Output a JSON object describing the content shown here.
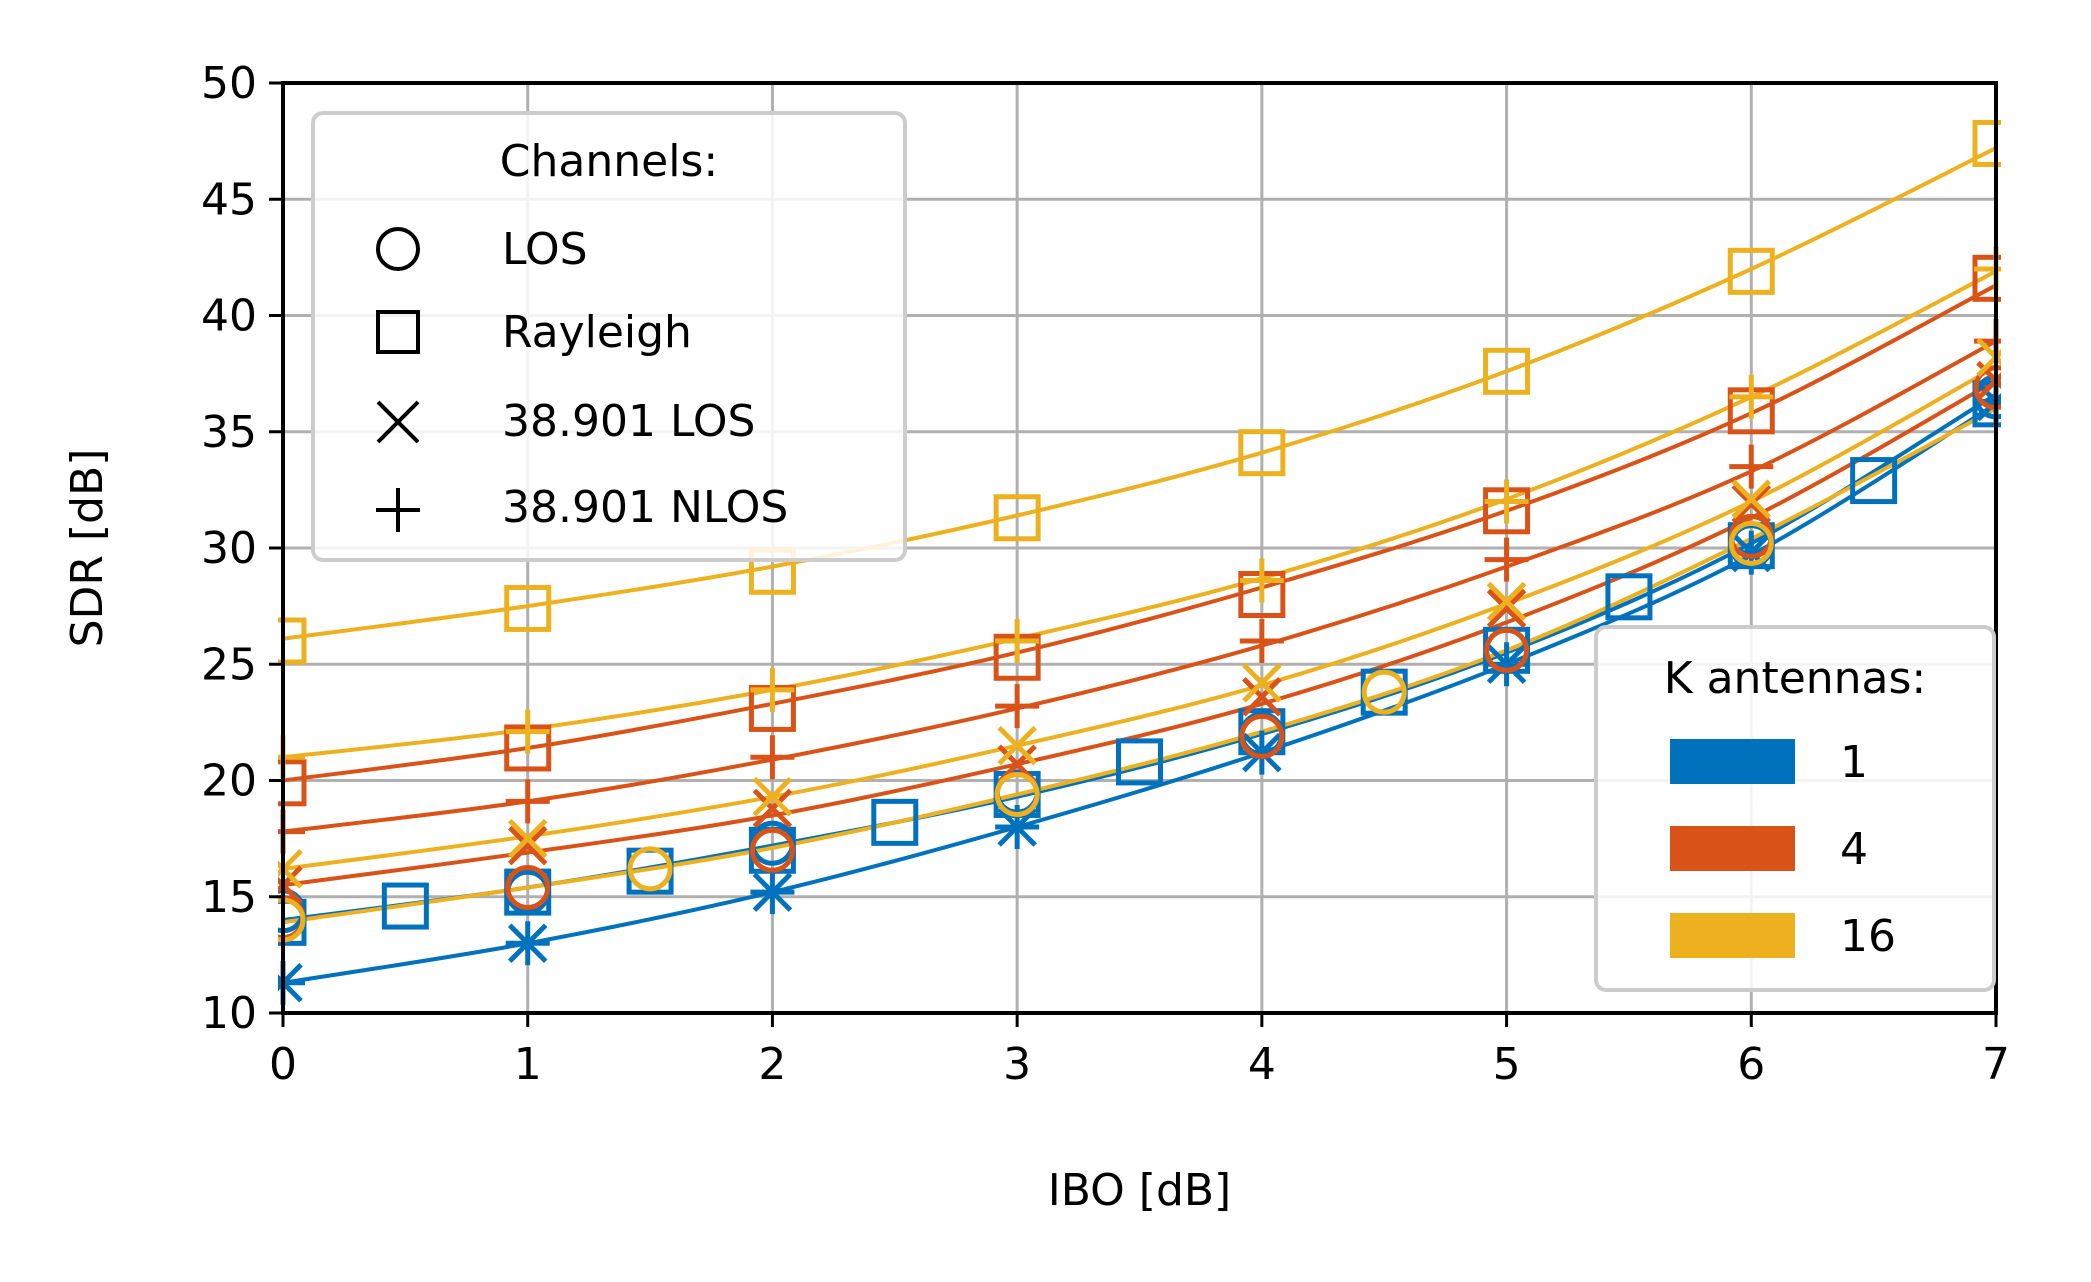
{
  "chart_data": {
    "type": "line",
    "xlabel": "IBO [dB]",
    "ylabel": "SDR [dB]",
    "xlim": [
      0,
      7
    ],
    "ylim": [
      10,
      50
    ],
    "xticks": [
      "0",
      "1",
      "2",
      "3",
      "4",
      "5",
      "6",
      "7"
    ],
    "yticks": [
      "10",
      "15",
      "20",
      "25",
      "30",
      "35",
      "40",
      "45",
      "50"
    ],
    "grid": true,
    "colors": {
      "k1": "#0072BD",
      "k4": "#D95319",
      "k16": "#EDB120"
    },
    "legend_channels": {
      "title": "Channels:",
      "placement": "top-left",
      "items": [
        {
          "marker": "circle",
          "label": "LOS"
        },
        {
          "marker": "square",
          "label": "Rayleigh"
        },
        {
          "marker": "x",
          "label": "38.901 LOS"
        },
        {
          "marker": "plus",
          "label": "38.901 NLOS"
        }
      ]
    },
    "legend_antennas": {
      "title": "K antennas:",
      "placement": "lower-right",
      "items": [
        {
          "color": "#0072BD",
          "label": "1"
        },
        {
          "color": "#D95319",
          "label": "4"
        },
        {
          "color": "#EDB120",
          "label": "16"
        }
      ]
    },
    "curves": [
      {
        "color": "#0072BD",
        "x": [
          0,
          1,
          2,
          3,
          4,
          5,
          6,
          7
        ],
        "y": [
          11.3,
          13.0,
          15.2,
          18.0,
          21.2,
          25.0,
          29.7,
          36.2
        ]
      },
      {
        "color": "#0072BD",
        "x": [
          0,
          1,
          2,
          3,
          4,
          5,
          6,
          7
        ],
        "y": [
          14.0,
          15.4,
          17.2,
          19.3,
          22.0,
          25.5,
          30.2,
          36.6
        ]
      },
      {
        "color": "#D95319",
        "x": [
          0,
          1,
          2,
          3,
          4,
          5,
          6,
          7
        ],
        "y": [
          15.5,
          16.9,
          18.5,
          20.7,
          23.3,
          26.8,
          31.3,
          37.2
        ]
      },
      {
        "color": "#D95319",
        "x": [
          0,
          1,
          2,
          3,
          4,
          5,
          6,
          7
        ],
        "y": [
          17.8,
          19.1,
          20.9,
          23.1,
          25.8,
          29.2,
          33.3,
          38.9
        ]
      },
      {
        "color": "#D95319",
        "x": [
          0,
          1,
          2,
          3,
          4,
          5,
          6,
          7
        ],
        "y": [
          20.0,
          21.4,
          23.3,
          25.5,
          28.3,
          31.6,
          35.8,
          41.3
        ]
      },
      {
        "color": "#EDB120",
        "x": [
          0,
          1,
          2,
          3,
          4,
          5,
          6,
          7
        ],
        "y": [
          13.9,
          15.4,
          17.1,
          19.4,
          22.1,
          25.6,
          30.4,
          36.0
        ]
      },
      {
        "color": "#EDB120",
        "x": [
          0,
          1,
          2,
          3,
          4,
          5,
          6,
          7
        ],
        "y": [
          16.2,
          17.6,
          19.3,
          21.5,
          24.1,
          27.6,
          32.0,
          37.8
        ]
      },
      {
        "color": "#EDB120",
        "x": [
          0,
          1,
          2,
          3,
          4,
          5,
          6,
          7
        ],
        "y": [
          21.0,
          22.2,
          23.9,
          26.1,
          28.7,
          32.1,
          36.5,
          41.9
        ]
      },
      {
        "color": "#EDB120",
        "x": [
          0,
          1,
          2,
          3,
          4,
          5,
          6,
          7
        ],
        "y": [
          26.1,
          27.5,
          29.2,
          31.4,
          34.1,
          37.6,
          42.0,
          47.2
        ]
      }
    ],
    "series": [
      {
        "channel": "LOS",
        "K": "1",
        "marker": "circle",
        "color": "#0072BD",
        "x": [
          0,
          1,
          2,
          3,
          4,
          5,
          6,
          7
        ],
        "y": [
          14.4,
          15.2,
          17.3,
          19.5,
          22.0,
          25.6,
          30.1,
          36.5
        ]
      },
      {
        "channel": "Rayleigh",
        "K": "1",
        "marker": "square",
        "color": "#0072BD",
        "x": [
          0,
          0.5,
          1,
          1.5,
          2,
          2.5,
          3,
          3.5,
          4,
          4.5,
          5,
          5.5,
          6,
          6.5,
          7
        ],
        "y": [
          13.9,
          14.6,
          15.2,
          16.1,
          17.0,
          18.2,
          19.4,
          20.8,
          22.1,
          23.8,
          25.6,
          27.9,
          30.1,
          32.9,
          36.2
        ]
      },
      {
        "channel": "38.901 LOS",
        "K": "1",
        "marker": "x",
        "color": "#0072BD",
        "x": [
          0,
          1,
          2,
          3,
          4,
          5,
          6,
          7
        ],
        "y": [
          11.3,
          13.0,
          15.2,
          18.0,
          21.2,
          25.0,
          29.8,
          36.3
        ]
      },
      {
        "channel": "38.901 NLOS",
        "K": "1",
        "marker": "plus",
        "color": "#0072BD",
        "x": [
          0,
          1,
          2,
          3,
          4,
          5,
          6,
          7
        ],
        "y": [
          11.3,
          13.0,
          15.2,
          18.0,
          21.2,
          25.0,
          29.8,
          36.3
        ]
      },
      {
        "channel": "LOS",
        "K": "4",
        "marker": "circle",
        "color": "#D95319",
        "x": [
          0,
          1,
          2,
          3,
          4,
          5,
          6,
          7
        ],
        "y": [
          14.1,
          15.4,
          17.0,
          19.4,
          21.9,
          25.6,
          30.5,
          36.9
        ]
      },
      {
        "channel": "Rayleigh",
        "K": "4",
        "marker": "square",
        "color": "#D95319",
        "x": [
          0,
          1,
          2,
          3,
          4,
          5,
          6,
          7
        ],
        "y": [
          19.9,
          21.4,
          23.1,
          25.3,
          28.0,
          31.6,
          35.9,
          41.6
        ]
      },
      {
        "channel": "38.901 LOS",
        "K": "4",
        "marker": "x",
        "color": "#D95319",
        "x": [
          0,
          1,
          2,
          3,
          4,
          5,
          6,
          7
        ],
        "y": [
          15.5,
          17.2,
          18.8,
          20.7,
          23.6,
          27.4,
          31.9,
          37.2
        ]
      },
      {
        "channel": "38.901 NLOS",
        "K": "4",
        "marker": "plus",
        "color": "#D95319",
        "x": [
          0,
          1,
          2,
          3,
          4,
          5,
          6,
          7
        ],
        "y": [
          17.8,
          19.1,
          21.0,
          23.2,
          26.0,
          29.5,
          33.5,
          38.9
        ]
      },
      {
        "channel": "LOS",
        "K": "16",
        "marker": "circle",
        "color": "#EDB120",
        "x": [
          0,
          1.5,
          3,
          4.5,
          6
        ],
        "y": [
          14.0,
          16.2,
          19.4,
          23.8,
          30.2
        ]
      },
      {
        "channel": "Rayleigh",
        "K": "16",
        "marker": "square",
        "color": "#EDB120",
        "x": [
          0,
          1,
          2,
          3,
          4,
          5,
          6,
          7
        ],
        "y": [
          26.0,
          27.4,
          29.0,
          31.3,
          34.1,
          37.6,
          41.9,
          47.4
        ]
      },
      {
        "channel": "38.901 LOS",
        "K": "16",
        "marker": "x",
        "color": "#EDB120",
        "x": [
          0,
          1,
          2,
          3,
          4,
          5,
          6,
          7
        ],
        "y": [
          16.2,
          17.5,
          19.3,
          21.5,
          24.2,
          27.7,
          32.1,
          38.2
        ]
      },
      {
        "channel": "38.901 NLOS",
        "K": "16",
        "marker": "plus",
        "color": "#EDB120",
        "x": [
          0,
          1,
          2,
          3,
          4,
          5,
          6,
          7
        ],
        "y": [
          21.0,
          22.1,
          23.9,
          26.0,
          28.6,
          32.0,
          36.5,
          42.0
        ]
      }
    ]
  }
}
